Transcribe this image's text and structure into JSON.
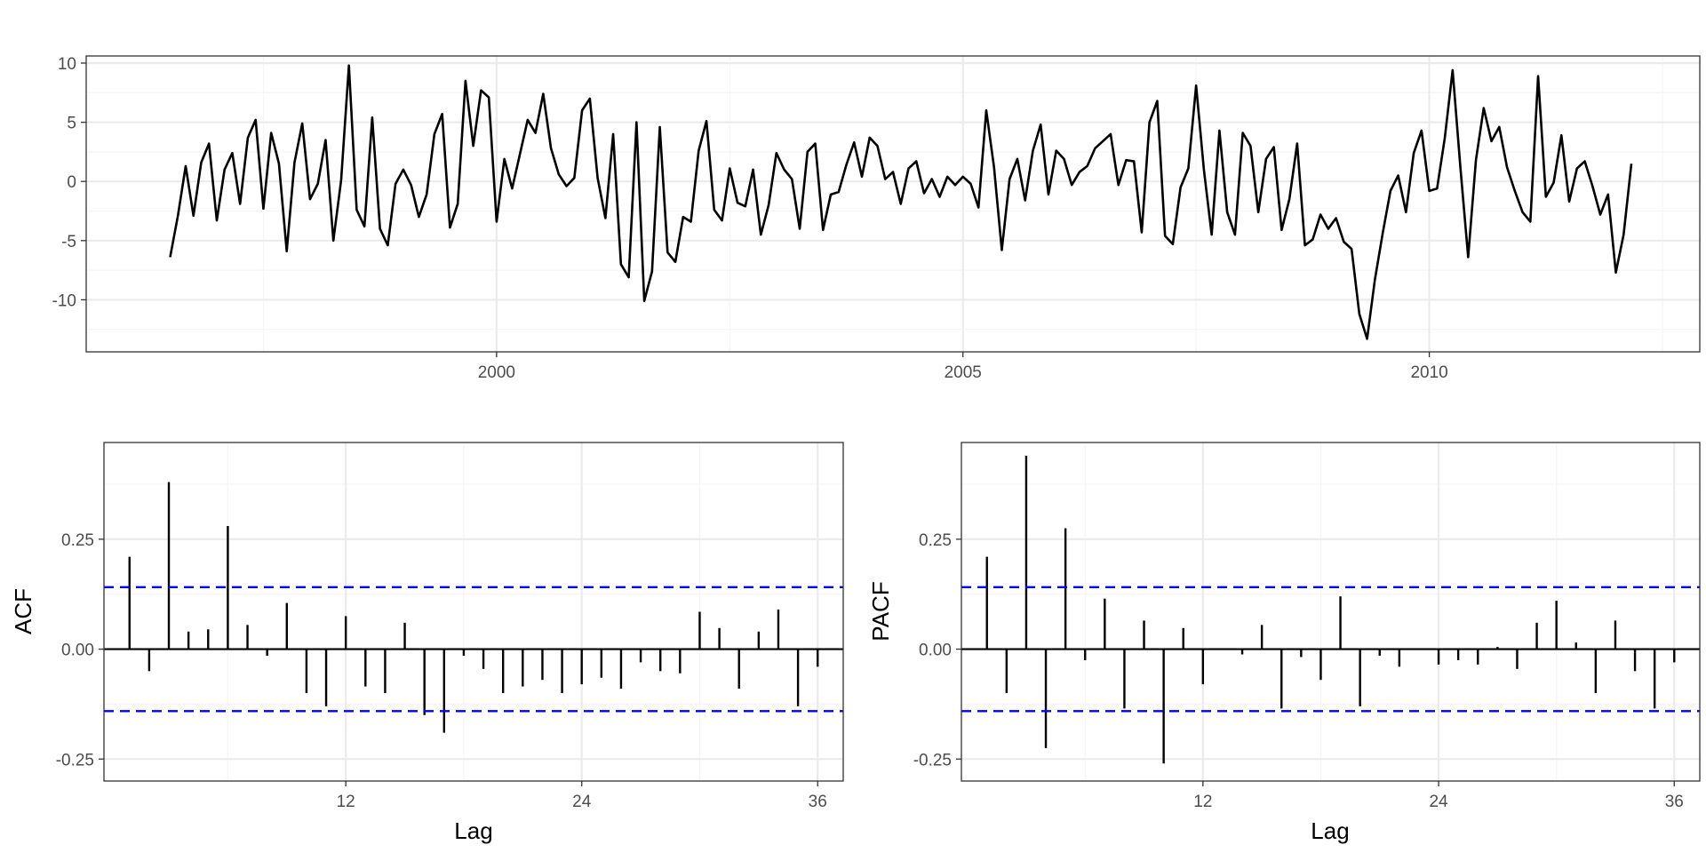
{
  "chart_data": [
    {
      "type": "line",
      "title": "",
      "xlabel": "",
      "ylabel": "",
      "x_start": 1996.5,
      "x_step": 0.08333333,
      "xlim": [
        1995.6,
        2012.9
      ],
      "ylim": [
        -14.4,
        10.6
      ],
      "x_ticks": [
        2000,
        2005,
        2010
      ],
      "x_tick_labels": [
        "2000",
        "2005",
        "2010"
      ],
      "y_ticks": [
        10,
        5,
        0,
        -5,
        -10
      ],
      "y_tick_labels": [
        "10",
        "5",
        "0",
        "-5",
        "-10"
      ],
      "grid": true,
      "series": [
        {
          "values": [
            -6.4,
            -2.9,
            1.3,
            -2.9,
            1.6,
            3.2,
            -3.3,
            1.0,
            2.4,
            -1.9,
            3.7,
            5.2,
            -2.3,
            4.1,
            1.5,
            -5.9,
            1.6,
            4.9,
            -1.5,
            -0.2,
            3.5,
            -5.0,
            0.1,
            9.8,
            -2.4,
            -3.8,
            5.4,
            -4.0,
            -5.4,
            -0.2,
            1.0,
            -0.3,
            -3.0,
            -1.1,
            4.0,
            5.7,
            -3.9,
            -1.9,
            8.5,
            3.0,
            7.7,
            7.1,
            -3.4,
            1.9,
            -0.6,
            2.3,
            5.2,
            4.1,
            7.4,
            2.8,
            0.6,
            -0.4,
            0.3,
            6.0,
            7.0,
            0.3,
            -3.1,
            4.0,
            -7.0,
            -8.1,
            5.0,
            -10.1,
            -7.6,
            4.6,
            -6.0,
            -6.8,
            -3.0,
            -3.4,
            2.6,
            5.1,
            -2.4,
            -3.3,
            1.1,
            -1.8,
            -2.1,
            1.0,
            -4.5,
            -2.0,
            2.4,
            1.0,
            0.2,
            -4.0,
            2.5,
            3.2,
            -4.1,
            -1.1,
            -0.9,
            1.4,
            3.3,
            0.4,
            3.7,
            3.0,
            0.2,
            0.8,
            -1.9,
            1.1,
            1.7,
            -1.0,
            0.2,
            -1.3,
            0.4,
            -0.3,
            0.4,
            -0.2,
            -2.2,
            6.0,
            1.2,
            -5.8,
            0.2,
            1.9,
            -1.6,
            2.6,
            4.8,
            -1.1,
            2.6,
            1.9,
            -0.3,
            0.8,
            1.3,
            2.8,
            3.4,
            4.0,
            -0.3,
            1.8,
            1.7,
            -4.3,
            5.0,
            6.8,
            -4.6,
            -5.3,
            -0.5,
            1.1,
            8.1,
            1.0,
            -4.5,
            4.3,
            -2.6,
            -4.5,
            4.1,
            3.0,
            -2.6,
            1.9,
            2.9,
            -4.1,
            -1.5,
            3.2,
            -5.4,
            -4.9,
            -2.8,
            -4.0,
            -3.1,
            -5.1,
            -5.7,
            -11.2,
            -13.3,
            -8.3,
            -4.4,
            -0.8,
            0.5,
            -2.6,
            2.4,
            4.3,
            -0.8,
            -0.6,
            3.7,
            9.4,
            1.2,
            -6.4,
            1.8,
            6.2,
            3.4,
            4.6,
            1.2,
            -0.8,
            -2.6,
            -3.4,
            8.9,
            -1.3,
            -0.1,
            3.9,
            -1.7,
            1.1,
            1.7,
            -0.4,
            -2.8,
            -1.1,
            -7.7,
            -4.5,
            1.5
          ]
        }
      ]
    },
    {
      "type": "bar",
      "title": "",
      "xlabel": "Lag",
      "ylabel": "ACF",
      "lags": [
        1,
        2,
        3,
        4,
        5,
        6,
        7,
        8,
        9,
        10,
        11,
        12,
        13,
        14,
        15,
        16,
        17,
        18,
        19,
        20,
        21,
        22,
        23,
        24,
        25,
        26,
        27,
        28,
        29,
        30,
        31,
        32,
        33,
        34,
        35,
        36
      ],
      "values": [
        0.21,
        -0.05,
        0.38,
        0.04,
        0.045,
        0.28,
        0.055,
        -0.015,
        0.105,
        -0.1,
        -0.13,
        0.075,
        -0.085,
        -0.1,
        0.06,
        -0.15,
        -0.19,
        -0.015,
        -0.045,
        -0.1,
        -0.085,
        -0.07,
        -0.1,
        -0.08,
        -0.065,
        -0.09,
        -0.03,
        -0.05,
        -0.055,
        0.085,
        0.048,
        -0.09,
        0.04,
        0.09,
        -0.13,
        -0.04
      ],
      "confidence_bound": 0.141,
      "xlim": [
        -0.3,
        37.3
      ],
      "ylim": [
        -0.3,
        0.47
      ],
      "x_ticks": [
        12,
        24,
        36
      ],
      "x_tick_labels": [
        "12",
        "24",
        "36"
      ],
      "y_ticks": [
        0.25,
        0,
        -0.25
      ],
      "y_tick_labels": [
        "0.25",
        "0.00",
        "-0.25"
      ],
      "grid": true
    },
    {
      "type": "bar",
      "title": "",
      "xlabel": "Lag",
      "ylabel": "PACF",
      "lags": [
        1,
        2,
        3,
        4,
        5,
        6,
        7,
        8,
        9,
        10,
        11,
        12,
        13,
        14,
        15,
        16,
        17,
        18,
        19,
        20,
        21,
        22,
        23,
        24,
        25,
        26,
        27,
        28,
        29,
        30,
        31,
        32,
        33,
        34,
        35,
        36
      ],
      "values": [
        0.21,
        -0.1,
        0.44,
        -0.225,
        0.275,
        -0.025,
        0.115,
        -0.135,
        0.065,
        -0.26,
        0.048,
        -0.08,
        0.0,
        -0.012,
        0.055,
        -0.135,
        -0.018,
        -0.07,
        0.12,
        -0.13,
        -0.015,
        -0.04,
        0.0,
        -0.035,
        -0.025,
        -0.035,
        0.005,
        -0.045,
        0.06,
        0.11,
        0.015,
        -0.1,
        0.065,
        -0.05,
        -0.135,
        -0.03
      ],
      "confidence_bound": 0.141,
      "xlim": [
        -0.3,
        37.3
      ],
      "ylim": [
        -0.3,
        0.47
      ],
      "x_ticks": [
        12,
        24,
        36
      ],
      "x_tick_labels": [
        "12",
        "24",
        "36"
      ],
      "y_ticks": [
        0.25,
        0,
        -0.25
      ],
      "y_tick_labels": [
        "0.25",
        "0.00",
        "-0.25"
      ],
      "grid": true
    }
  ],
  "colors": {
    "panel_border": "#333333",
    "grid_major": "#ebebeb",
    "grid_minor": "#f5f5f5",
    "series": "#000000",
    "confidence": "#0000ff",
    "tick_text": "#4d4d4d"
  }
}
